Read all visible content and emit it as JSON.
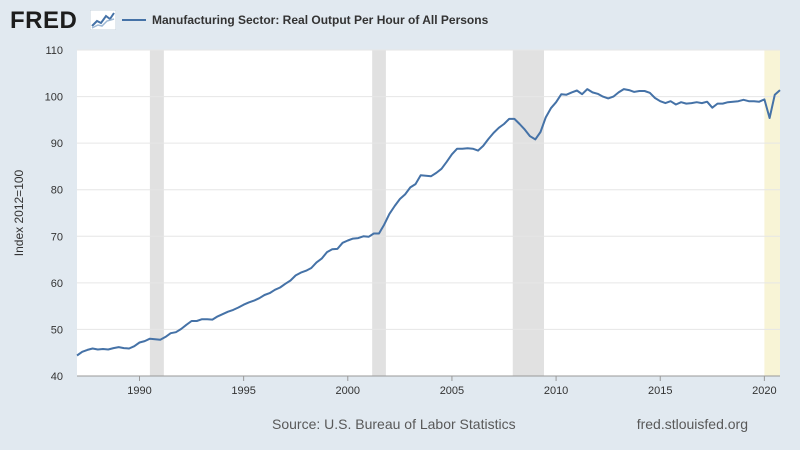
{
  "brand": {
    "logo_text": "FRED",
    "logo_icon": "fred-graph-icon"
  },
  "legend": {
    "label": "Manufacturing Sector: Real Output Per Hour of All Persons",
    "color": "#4572a7"
  },
  "footer": {
    "source": "Source: U.S. Bureau of Labor Statistics",
    "url": "fred.stlouisfed.org"
  },
  "chart_data": {
    "type": "line",
    "title": "",
    "ylabel": "Index 2012=100",
    "xlabel": "",
    "xlim": [
      1987.0,
      2020.75
    ],
    "ylim": [
      40,
      110
    ],
    "yticks": [
      40,
      50,
      60,
      70,
      80,
      90,
      100,
      110
    ],
    "xticks": [
      1990,
      1995,
      2000,
      2005,
      2010,
      2015,
      2020
    ],
    "grid": true,
    "series_color": "#4572a7",
    "recession_color": "#e1e1e1",
    "projection_color": "#f8f4d6",
    "recessions": [
      [
        1990.5,
        1991.17
      ],
      [
        2001.17,
        2001.83
      ],
      [
        2007.92,
        2009.42
      ]
    ],
    "highlight_period": [
      2020.0,
      2020.75
    ],
    "series": [
      {
        "name": "Manufacturing Sector: Real Output Per Hour of All Persons",
        "x": [
          1987.0,
          1987.25,
          1987.5,
          1987.75,
          1988.0,
          1988.25,
          1988.5,
          1988.75,
          1989.0,
          1989.25,
          1989.5,
          1989.75,
          1990.0,
          1990.25,
          1990.5,
          1990.75,
          1991.0,
          1991.25,
          1991.5,
          1991.75,
          1992.0,
          1992.25,
          1992.5,
          1992.75,
          1993.0,
          1993.25,
          1993.5,
          1993.75,
          1994.0,
          1994.25,
          1994.5,
          1994.75,
          1995.0,
          1995.25,
          1995.5,
          1995.75,
          1996.0,
          1996.25,
          1996.5,
          1996.75,
          1997.0,
          1997.25,
          1997.5,
          1997.75,
          1998.0,
          1998.25,
          1998.5,
          1998.75,
          1999.0,
          1999.25,
          1999.5,
          1999.75,
          2000.0,
          2000.25,
          2000.5,
          2000.75,
          2001.0,
          2001.25,
          2001.5,
          2001.75,
          2002.0,
          2002.25,
          2002.5,
          2002.75,
          2003.0,
          2003.25,
          2003.5,
          2003.75,
          2004.0,
          2004.25,
          2004.5,
          2004.75,
          2005.0,
          2005.25,
          2005.5,
          2005.75,
          2006.0,
          2006.25,
          2006.5,
          2006.75,
          2007.0,
          2007.25,
          2007.5,
          2007.75,
          2008.0,
          2008.25,
          2008.5,
          2008.75,
          2009.0,
          2009.25,
          2009.5,
          2009.75,
          2010.0,
          2010.25,
          2010.5,
          2010.75,
          2011.0,
          2011.25,
          2011.5,
          2011.75,
          2012.0,
          2012.25,
          2012.5,
          2012.75,
          2013.0,
          2013.25,
          2013.5,
          2013.75,
          2014.0,
          2014.25,
          2014.5,
          2014.75,
          2015.0,
          2015.25,
          2015.5,
          2015.75,
          2016.0,
          2016.25,
          2016.5,
          2016.75,
          2017.0,
          2017.25,
          2017.5,
          2017.75,
          2018.0,
          2018.25,
          2018.5,
          2018.75,
          2019.0,
          2019.25,
          2019.5,
          2019.75,
          2020.0,
          2020.25,
          2020.5,
          2020.75
        ],
        "y": [
          44.4,
          45.2,
          45.6,
          45.9,
          45.7,
          45.8,
          45.7,
          46.0,
          46.2,
          46.0,
          45.9,
          46.4,
          47.2,
          47.5,
          48.0,
          47.9,
          47.8,
          48.4,
          49.2,
          49.4,
          50.1,
          51.0,
          51.8,
          51.8,
          52.2,
          52.2,
          52.1,
          52.8,
          53.3,
          53.8,
          54.2,
          54.7,
          55.3,
          55.8,
          56.2,
          56.7,
          57.4,
          57.8,
          58.5,
          59.0,
          59.8,
          60.5,
          61.6,
          62.2,
          62.6,
          63.2,
          64.4,
          65.2,
          66.6,
          67.2,
          67.3,
          68.6,
          69.1,
          69.5,
          69.6,
          70.0,
          69.9,
          70.6,
          70.6,
          72.5,
          74.8,
          76.5,
          78.0,
          79.0,
          80.5,
          81.2,
          83.1,
          83.0,
          82.9,
          83.6,
          84.5,
          86.0,
          87.6,
          88.8,
          88.8,
          88.9,
          88.8,
          88.4,
          89.4,
          90.9,
          92.2,
          93.3,
          94.1,
          95.2,
          95.2,
          94.1,
          92.9,
          91.5,
          90.8,
          92.4,
          95.5,
          97.5,
          98.8,
          100.5,
          100.4,
          100.9,
          101.3,
          100.5,
          101.6,
          100.9,
          100.6,
          100.0,
          99.6,
          100.0,
          100.9,
          101.6,
          101.4,
          101.0,
          101.2,
          101.2,
          100.8,
          99.7,
          99.0,
          98.6,
          99.0,
          98.3,
          98.8,
          98.5,
          98.6,
          98.8,
          98.6,
          98.9,
          97.6,
          98.5,
          98.5,
          98.8,
          98.9,
          99.0,
          99.3,
          99.0,
          99.0,
          98.9,
          99.4,
          95.4,
          100.4,
          101.4
        ]
      }
    ]
  }
}
